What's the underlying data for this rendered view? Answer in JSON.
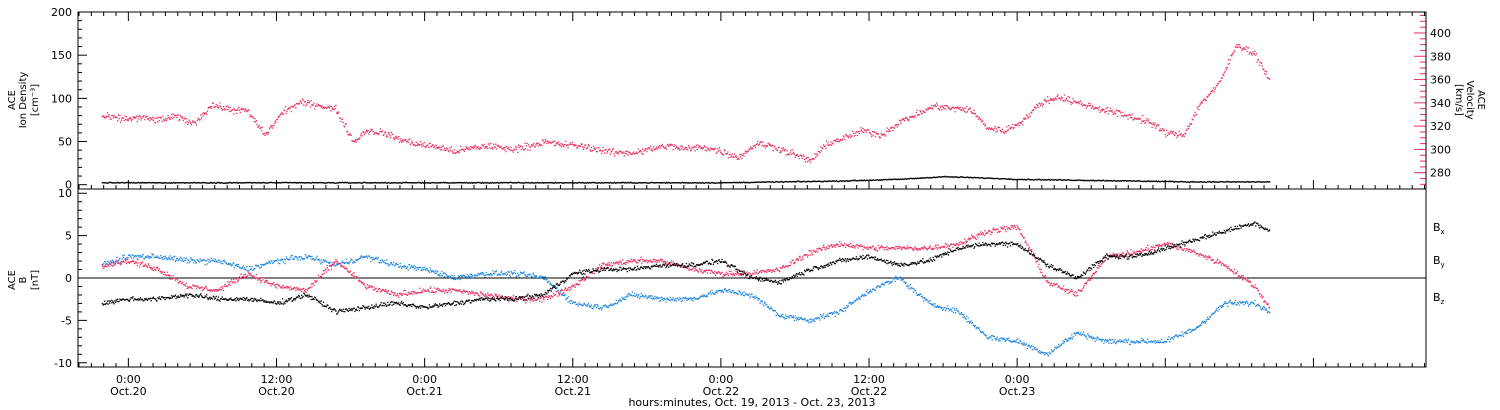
{
  "colors": {
    "black": "#000000",
    "pink": "#e8305f",
    "blue": "#1f86e0"
  },
  "chart_data": [
    {
      "type": "scatter",
      "panel": "top",
      "ylabel": [
        "ACE",
        "Ion Density",
        "[cm⁻³]"
      ],
      "y2label": [
        "ACE",
        "Velocity",
        "[km/s]"
      ],
      "ylim": [
        -5,
        200
      ],
      "y2lim": [
        266,
        418
      ],
      "yticks": [
        0,
        50,
        100,
        150,
        200
      ],
      "y2ticks": [
        280,
        300,
        320,
        340,
        360,
        380,
        400
      ],
      "series": [
        {
          "color_key": "black",
          "axis": "left",
          "x": [
            -0.09,
            0.21,
            0.5,
            0.8,
            1.1,
            1.4,
            1.7,
            2.0,
            2.2,
            2.4,
            2.6,
            2.75,
            2.85,
            3.0,
            3.2,
            3.4,
            3.6,
            3.85
          ],
          "y": [
            2,
            2,
            2,
            2,
            2,
            2,
            2,
            2,
            3,
            4,
            6,
            9,
            8,
            6,
            5,
            4,
            3,
            3
          ]
        },
        {
          "color_key": "pink",
          "axis": "right",
          "x": [
            -0.09,
            -0.02,
            0.04,
            0.1,
            0.16,
            0.22,
            0.28,
            0.34,
            0.4,
            0.46,
            0.52,
            0.58,
            0.64,
            0.7,
            0.76,
            0.8,
            0.86,
            0.92,
            0.98,
            1.04,
            1.1,
            1.16,
            1.22,
            1.28,
            1.34,
            1.4,
            1.46,
            1.52,
            1.58,
            1.64,
            1.7,
            1.76,
            1.82,
            1.88,
            1.94,
            2.0,
            2.06,
            2.12,
            2.18,
            2.24,
            2.3,
            2.36,
            2.42,
            2.48,
            2.54,
            2.6,
            2.66,
            2.72,
            2.78,
            2.84,
            2.9,
            2.96,
            3.02,
            3.08,
            3.14,
            3.2,
            3.26,
            3.32,
            3.38,
            3.44,
            3.5,
            3.56,
            3.62,
            3.68,
            3.74,
            3.8,
            3.85
          ],
          "y": [
            328,
            326,
            327,
            325,
            328,
            322,
            338,
            334,
            333,
            312,
            332,
            340,
            338,
            334,
            306,
            316,
            314,
            308,
            304,
            302,
            298,
            301,
            303,
            300,
            302,
            306,
            304,
            303,
            300,
            297,
            297,
            300,
            303,
            300,
            302,
            298,
            293,
            305,
            302,
            296,
            290,
            305,
            310,
            316,
            312,
            323,
            330,
            337,
            335,
            334,
            318,
            316,
            325,
            340,
            345,
            340,
            336,
            332,
            328,
            324,
            314,
            312,
            340,
            356,
            390,
            382,
            360
          ]
        }
      ]
    },
    {
      "type": "scatter",
      "panel": "bottom",
      "ylabel": [
        "ACE",
        "B",
        "[nT]"
      ],
      "ylim": [
        -10.5,
        10.5
      ],
      "yticks": [
        -10,
        -5,
        0,
        5,
        10
      ],
      "legend": [
        {
          "label": "B",
          "subscript": "x",
          "color_key": "black"
        },
        {
          "label": "B",
          "subscript": "y",
          "color_key": "blue"
        },
        {
          "label": "B",
          "subscript": "z",
          "color_key": "pink"
        }
      ],
      "series": [
        {
          "name": "Bx",
          "color_key": "black",
          "x": [
            -0.09,
            0.0,
            0.1,
            0.2,
            0.3,
            0.4,
            0.5,
            0.6,
            0.7,
            0.8,
            0.9,
            1.0,
            1.1,
            1.2,
            1.3,
            1.4,
            1.5,
            1.6,
            1.7,
            1.8,
            1.9,
            2.0,
            2.1,
            2.2,
            2.3,
            2.4,
            2.5,
            2.6,
            2.7,
            2.8,
            2.9,
            3.0,
            3.1,
            3.2,
            3.3,
            3.4,
            3.5,
            3.6,
            3.7,
            3.8,
            3.85
          ],
          "y": [
            -3.0,
            -2.5,
            -2.5,
            -2.0,
            -2.5,
            -2.5,
            -3.0,
            -2.0,
            -4.0,
            -3.5,
            -3.0,
            -3.5,
            -3.0,
            -2.5,
            -2.5,
            -2.0,
            0.5,
            1.0,
            1.0,
            1.5,
            1.5,
            2.0,
            0.0,
            -0.5,
            1.0,
            2.0,
            2.5,
            1.5,
            2.0,
            3.5,
            4.0,
            4.0,
            1.5,
            0.0,
            2.5,
            2.5,
            3.5,
            4.5,
            5.5,
            6.5,
            5.5
          ]
        },
        {
          "name": "By",
          "color_key": "blue",
          "x": [
            -0.09,
            0.0,
            0.1,
            0.2,
            0.3,
            0.4,
            0.5,
            0.6,
            0.7,
            0.8,
            0.9,
            1.0,
            1.1,
            1.2,
            1.3,
            1.4,
            1.5,
            1.6,
            1.7,
            1.8,
            1.9,
            2.0,
            2.1,
            2.2,
            2.3,
            2.4,
            2.5,
            2.6,
            2.7,
            2.8,
            2.9,
            3.0,
            3.1,
            3.2,
            3.3,
            3.4,
            3.5,
            3.6,
            3.7,
            3.8,
            3.85
          ],
          "y": [
            1.5,
            2.5,
            2.5,
            2.0,
            2.0,
            1.0,
            2.0,
            2.5,
            1.5,
            2.5,
            1.5,
            1.0,
            0.0,
            0.5,
            0.5,
            0.0,
            -3.0,
            -3.5,
            -2.0,
            -2.5,
            -2.5,
            -1.5,
            -2.0,
            -4.5,
            -5.0,
            -4.0,
            -1.5,
            0.0,
            -3.0,
            -4.0,
            -7.0,
            -7.5,
            -9.0,
            -6.5,
            -7.5,
            -7.5,
            -7.5,
            -6.0,
            -3.0,
            -3.0,
            -4.0
          ]
        },
        {
          "name": "Bz",
          "color_key": "pink",
          "x": [
            -0.09,
            0.0,
            0.1,
            0.2,
            0.3,
            0.4,
            0.5,
            0.6,
            0.7,
            0.8,
            0.9,
            1.0,
            1.1,
            1.2,
            1.3,
            1.4,
            1.5,
            1.6,
            1.7,
            1.8,
            1.9,
            2.0,
            2.1,
            2.2,
            2.3,
            2.4,
            2.5,
            2.6,
            2.7,
            2.8,
            2.9,
            3.0,
            3.1,
            3.2,
            3.3,
            3.4,
            3.5,
            3.6,
            3.7,
            3.8,
            3.85
          ],
          "y": [
            1.5,
            2.0,
            1.0,
            -1.0,
            -1.5,
            0.5,
            -1.0,
            -1.5,
            2.0,
            -1.0,
            -2.0,
            -1.5,
            -1.5,
            -2.0,
            -2.5,
            -2.5,
            -1.0,
            1.5,
            2.0,
            2.0,
            1.0,
            0.5,
            0.5,
            1.0,
            3.0,
            4.0,
            3.5,
            3.5,
            3.5,
            4.0,
            5.5,
            6.0,
            -0.5,
            -2.0,
            2.5,
            3.0,
            4.0,
            3.0,
            1.5,
            -1.0,
            -3.5
          ]
        }
      ]
    }
  ],
  "x_axis": {
    "range_days": [
      -0.17,
      4.38
    ],
    "major": [
      {
        "t": 0.0,
        "time": "0:00",
        "date": "Oct.20"
      },
      {
        "t": 0.5,
        "time": "12:00",
        "date": "Oct.20"
      },
      {
        "t": 1.0,
        "time": "0:00",
        "date": "Oct.21"
      },
      {
        "t": 1.5,
        "time": "12:00",
        "date": "Oct.21"
      },
      {
        "t": 2.0,
        "time": "0:00",
        "date": "Oct.22"
      },
      {
        "t": 2.5,
        "time": "12:00",
        "date": "Oct.22"
      },
      {
        "t": 3.0,
        "time": "0:00",
        "date": "Oct.23"
      }
    ],
    "title": "hours:minutes, Oct. 19, 2013 - Oct. 23, 2013"
  }
}
